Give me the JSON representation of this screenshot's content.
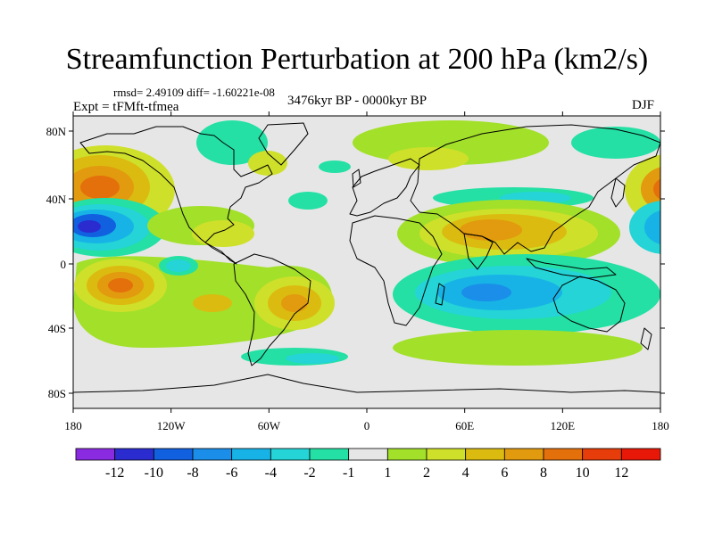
{
  "title": "Streamfunction Perturbation at 200 hPa (km2/s)",
  "stats": "rmsd= 2.49109 diff= -1.60221e-08",
  "experiment": "Expt = tFMft-tfmea",
  "period": "3476kyr BP - 0000kyr BP",
  "season": "DJF",
  "lat_ticks": [
    "80N",
    "40N",
    "0",
    "40S",
    "80S"
  ],
  "lon_ticks": [
    "180",
    "120W",
    "60W",
    "0",
    "60E",
    "120E",
    "180"
  ],
  "colorbar": {
    "labels": [
      "-12",
      "-10",
      "-8",
      "-6",
      "-4",
      "-2",
      "-1",
      "1",
      "2",
      "4",
      "6",
      "8",
      "10",
      "12"
    ],
    "colors": [
      "#8a2be2",
      "#2a2cd0",
      "#1060e0",
      "#1a8ee8",
      "#17b3e6",
      "#24d4d6",
      "#24e0a4",
      "#e6e6e6",
      "#a2e02a",
      "#cfe02a",
      "#dbbb10",
      "#e29a0e",
      "#e4700c",
      "#e63d0a",
      "#e81808"
    ]
  },
  "colors": {
    "background": "#e6e6e6",
    "coast": "#000000"
  }
}
